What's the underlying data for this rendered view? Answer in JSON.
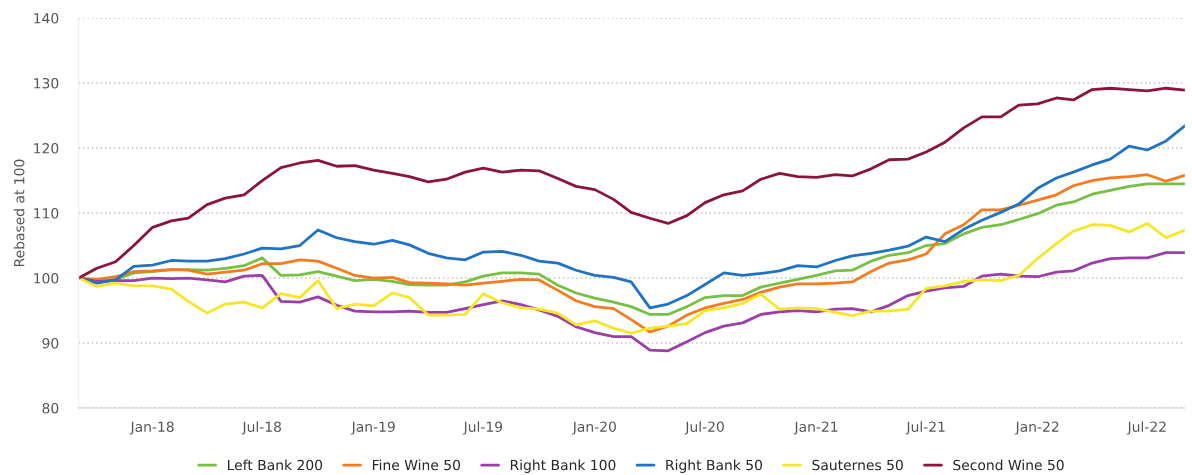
{
  "chart_data": {
    "type": "line",
    "ylabel": "Rebased at 100",
    "x": [
      "2017-09",
      "2017-10",
      "2017-11",
      "2017-12",
      "2018-01",
      "2018-02",
      "2018-03",
      "2018-04",
      "2018-05",
      "2018-06",
      "2018-07",
      "2018-08",
      "2018-09",
      "2018-10",
      "2018-11",
      "2018-12",
      "2019-01",
      "2019-02",
      "2019-03",
      "2019-04",
      "2019-05",
      "2019-06",
      "2019-07",
      "2019-08",
      "2019-09",
      "2019-10",
      "2019-11",
      "2019-12",
      "2020-01",
      "2020-02",
      "2020-03",
      "2020-04",
      "2020-05",
      "2020-06",
      "2020-07",
      "2020-08",
      "2020-09",
      "2020-10",
      "2020-11",
      "2020-12",
      "2021-01",
      "2021-02",
      "2021-03",
      "2021-04",
      "2021-05",
      "2021-06",
      "2021-07",
      "2021-08",
      "2021-09",
      "2021-10",
      "2021-11",
      "2021-12",
      "2022-01",
      "2022-02",
      "2022-03",
      "2022-04",
      "2022-05",
      "2022-06",
      "2022-07",
      "2022-08",
      "2022-09"
    ],
    "series": [
      {
        "name": "Left Bank 200",
        "color": "#77c043",
        "values": [
          100,
          99.5,
          99.8,
          100.8,
          101,
          101.3,
          101.3,
          101.2,
          101.5,
          101.9,
          103.1,
          100.4,
          100.5,
          101,
          100.3,
          99.6,
          99.8,
          99.5,
          99,
          98.9,
          98.9,
          99.4,
          100.3,
          100.8,
          100.8,
          100.6,
          98.9,
          97.7,
          96.9,
          96.3,
          95.6,
          94.4,
          94.4,
          95.6,
          97,
          97.3,
          97.3,
          98.6,
          99.2,
          99.8,
          100.4,
          101.1,
          101.2,
          102.6,
          103.5,
          103.9,
          105,
          105.3,
          106.8,
          107.8,
          108.2,
          109,
          109.9,
          111.2,
          111.7,
          112.9,
          113.5,
          114.1,
          114.5,
          114.5,
          114.5
        ]
      },
      {
        "name": "Fine Wine 50",
        "color": "#f47b20",
        "values": [
          100,
          99.8,
          100.2,
          101,
          101.1,
          101.3,
          101.2,
          100.6,
          100.9,
          101.2,
          102.2,
          102.2,
          102.8,
          102.6,
          101.5,
          100.4,
          100,
          100.1,
          99.3,
          99.2,
          99.1,
          98.9,
          99.2,
          99.5,
          99.8,
          99.7,
          98.1,
          96.5,
          95.6,
          95.3,
          93.6,
          91.7,
          92.6,
          94.3,
          95.4,
          96.1,
          96.7,
          97.8,
          98.6,
          99.1,
          99.1,
          99.2,
          99.4,
          101,
          102.3,
          102.8,
          103.7,
          106.8,
          108.2,
          110.5,
          110.5,
          111.2,
          112,
          112.8,
          114.2,
          115,
          115.4,
          115.6,
          115.9,
          114.9,
          115.8
        ]
      },
      {
        "name": "Right Bank 100",
        "color": "#9b3fa8",
        "values": [
          100,
          99.5,
          99.6,
          99.6,
          100,
          99.9,
          100,
          99.7,
          99.4,
          100.3,
          100.4,
          96.4,
          96.3,
          97.1,
          95.8,
          94.9,
          94.8,
          94.8,
          94.9,
          94.7,
          94.7,
          95.3,
          95.9,
          96.5,
          95.9,
          95.1,
          94.1,
          92.5,
          91.6,
          91,
          91,
          88.9,
          88.8,
          90.2,
          91.6,
          92.6,
          93.1,
          94.4,
          94.8,
          95,
          94.8,
          95.2,
          95.3,
          94.8,
          95.8,
          97.3,
          98,
          98.5,
          98.7,
          100.3,
          100.6,
          100.3,
          100.2,
          100.9,
          101.1,
          102.3,
          103,
          103.1,
          103.1,
          103.9,
          103.9
        ]
      },
      {
        "name": "Right Bank 50",
        "color": "#1f72c4",
        "values": [
          100,
          99.2,
          99.7,
          101.8,
          102,
          102.7,
          102.6,
          102.6,
          103,
          103.7,
          104.6,
          104.5,
          105,
          107.4,
          106.2,
          105.6,
          105.2,
          105.8,
          105.1,
          103.8,
          103.1,
          102.8,
          104,
          104.1,
          103.5,
          102.6,
          102.3,
          101.2,
          100.4,
          100.1,
          99.4,
          95.4,
          96,
          97.3,
          99,
          100.8,
          100.4,
          100.7,
          101.1,
          101.9,
          101.7,
          102.7,
          103.4,
          103.8,
          104.3,
          104.9,
          106.3,
          105.6,
          107.5,
          108.9,
          110.1,
          111.4,
          113.8,
          115.4,
          116.3,
          117.4,
          118.3,
          120.3,
          119.7,
          121.1,
          123.4
        ]
      },
      {
        "name": "Sauternes 50",
        "color": "#f6e627",
        "values": [
          100,
          98.7,
          99.2,
          98.8,
          98.8,
          98.3,
          96.4,
          94.6,
          96,
          96.3,
          95.4,
          97.6,
          97,
          99.6,
          95.3,
          96,
          95.7,
          97.7,
          97,
          94.3,
          94.3,
          94.4,
          97.6,
          96.2,
          95.4,
          95.2,
          94.6,
          92.8,
          93.4,
          92.3,
          91.5,
          92.3,
          92.6,
          93,
          95,
          95.4,
          96.1,
          97.5,
          95.2,
          95.4,
          95.3,
          94.7,
          94.2,
          94.9,
          94.9,
          95.2,
          98.4,
          98.8,
          99.5,
          99.7,
          99.6,
          100.4,
          103,
          105.3,
          107.2,
          108.2,
          108.1,
          107.1,
          108.4,
          106.2,
          107.4
        ]
      },
      {
        "name": "Second Wine 50",
        "color": "#8b1538",
        "values": [
          100,
          101.5,
          102.5,
          105,
          107.8,
          108.8,
          109.2,
          111.3,
          112.3,
          112.8,
          115,
          117,
          117.7,
          118.1,
          117.2,
          117.3,
          116.6,
          116.1,
          115.6,
          114.8,
          115.2,
          116.3,
          116.9,
          116.3,
          116.6,
          116.5,
          115.3,
          114.1,
          113.6,
          112.1,
          110.1,
          109.2,
          108.4,
          109.6,
          111.6,
          112.8,
          113.4,
          115.2,
          116.1,
          115.6,
          115.5,
          115.9,
          115.7,
          116.8,
          118.2,
          118.3,
          119.4,
          120.9,
          123.1,
          124.8,
          124.8,
          126.6,
          126.8,
          127.7,
          127.4,
          129,
          129.2,
          129,
          128.8,
          129.2,
          128.9
        ]
      }
    ],
    "xlim": [
      "2017-09",
      "2022-09"
    ],
    "xticks": [
      {
        "value": "2018-01",
        "label": "Jan-18"
      },
      {
        "value": "2018-07",
        "label": "Jul-18"
      },
      {
        "value": "2019-01",
        "label": "Jan-19"
      },
      {
        "value": "2019-07",
        "label": "Jul-19"
      },
      {
        "value": "2020-01",
        "label": "Jan-20"
      },
      {
        "value": "2020-07",
        "label": "Jul-20"
      },
      {
        "value": "2021-01",
        "label": "Jan-21"
      },
      {
        "value": "2021-07",
        "label": "Jul-21"
      },
      {
        "value": "2022-01",
        "label": "Jan-22"
      },
      {
        "value": "2022-07",
        "label": "Jul-22"
      }
    ],
    "ylim": [
      80,
      140
    ],
    "yticks": [
      80,
      90,
      100,
      110,
      120,
      130,
      140
    ],
    "grid": "y",
    "legend": "bottom",
    "marker": "none",
    "line_style": "solid"
  }
}
